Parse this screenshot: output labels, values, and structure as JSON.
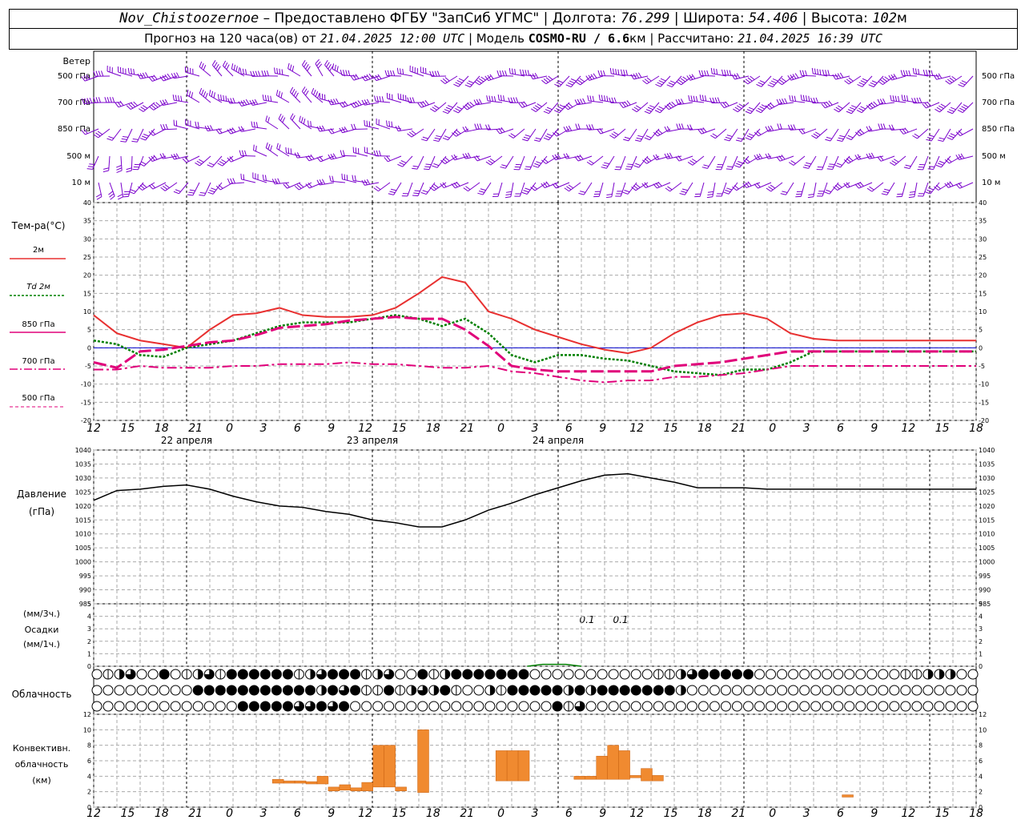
{
  "header": {
    "station": "Nov_Chistoozernoe",
    "provider": "– Предоставлено ФГБУ \"ЗапСиб УГМС\"",
    "lon_label": "Долгота:",
    "lon": "76.299",
    "lat_label": "Широта:",
    "lat": "54.406",
    "alt_label": "Высота:",
    "alt": "102",
    "alt_unit": "м",
    "forecast_label": "Прогноз на 120 часа(ов) от",
    "forecast_time": "21.04.2025 12:00 UTC",
    "model_label": "Модель",
    "model": "COSMO-RU / 6.6",
    "model_unit": "км",
    "calc_label": "Рассчитано:",
    "calc_time": "21.04.2025 16:39 UTC"
  },
  "labels": {
    "wind": "Ветер",
    "levels": [
      "500 гПа",
      "700 гПа",
      "850 гПа",
      "500 м",
      "10  м"
    ],
    "temp_title": "Тем-ра(°С)",
    "temp_legend": [
      {
        "label": "2м"
      },
      {
        "label": "Td  2м"
      },
      {
        "label": "850 гПа"
      },
      {
        "label": "700 гПа"
      },
      {
        "label": "500 гПа"
      }
    ],
    "pressure_title": "Давление",
    "pressure_unit": "(гПа)",
    "precip_unit_top": "(мм/3ч.)",
    "precip_title": "Осадки",
    "precip_unit_bottom": "(мм/1ч.)",
    "clouds_title": "Облачность",
    "conv_title_1": "Конвективн.",
    "conv_title_2": "облачность",
    "conv_unit": "(км)",
    "precip_values": [
      "0.1",
      "0.1"
    ]
  },
  "chart_data": {
    "hours": [
      "12",
      "15",
      "18",
      "21",
      "0",
      "3",
      "6",
      "9",
      "12",
      "15",
      "18",
      "21",
      "0",
      "3",
      "6",
      "9",
      "12",
      "15",
      "18",
      "21",
      "0",
      "3",
      "6",
      "9",
      "12",
      "15",
      "18"
    ],
    "dates": [
      "22 апреля",
      "23 апреля",
      "24 апреля"
    ],
    "colors": {
      "t2m": "#e83030",
      "td2m": "#008000",
      "t850": "#e0007a",
      "t700": "#e0007a",
      "t500": "#e0007a",
      "wind": "#7a00cc",
      "pressure": "#000000",
      "conv": "#f08a30",
      "zero": "#0000cc"
    },
    "temp_axis": {
      "min": -20,
      "max": 40,
      "step": 5
    },
    "pressure_axis": {
      "min": 985,
      "max": 1040,
      "step": 5
    },
    "precip_axis": {
      "min": 0,
      "max": 5,
      "step": 1
    },
    "conv_axis": {
      "min": 0,
      "max": 12,
      "step": 2
    },
    "temperature": [
      {
        "name": "t2m",
        "x": [
          0,
          3,
          6,
          9,
          12,
          15,
          18,
          21,
          24,
          27,
          30,
          33,
          36,
          39,
          42,
          45,
          48,
          51,
          54,
          57,
          60,
          63,
          66,
          69,
          72,
          75,
          78,
          81,
          84,
          87,
          90,
          93,
          96,
          99,
          102,
          105,
          108,
          111,
          114
        ],
        "y": [
          9,
          4,
          2,
          1,
          0,
          5,
          9,
          9.5,
          11,
          9,
          8.5,
          8.5,
          9,
          11,
          15,
          19.5,
          18,
          10,
          8,
          5,
          3,
          1,
          -0.5,
          -1.5,
          0,
          4,
          7,
          9,
          9.5,
          8,
          4,
          2.5,
          2,
          2,
          2,
          2,
          2,
          2,
          2
        ]
      },
      {
        "name": "td2m",
        "x": [
          0,
          3,
          6,
          9,
          12,
          15,
          18,
          21,
          24,
          27,
          30,
          33,
          36,
          39,
          42,
          45,
          48,
          51,
          54,
          57,
          60,
          63,
          66,
          69,
          72,
          75,
          78,
          81,
          84,
          87,
          90,
          93,
          96,
          99,
          102,
          105,
          108,
          111,
          114
        ],
        "y": [
          2,
          1,
          -2,
          -2.5,
          0,
          1,
          2,
          4,
          6,
          7,
          7,
          7,
          8,
          9,
          8,
          6,
          8,
          4,
          -2,
          -4,
          -2,
          -2,
          -3,
          -3.5,
          -5,
          -6.5,
          -7,
          -7.5,
          -6,
          -6,
          -4,
          -1,
          -1,
          -1,
          -1,
          -1,
          -1,
          -1,
          -1
        ]
      },
      {
        "name": "t850",
        "x": [
          0,
          3,
          6,
          9,
          12,
          15,
          18,
          21,
          24,
          27,
          30,
          33,
          36,
          39,
          42,
          45,
          48,
          51,
          54,
          57,
          60,
          63,
          66,
          69,
          72,
          75,
          78,
          81,
          84,
          87,
          90,
          93,
          96,
          99,
          102,
          105,
          108,
          111,
          114
        ],
        "y": [
          -4,
          -5.5,
          -1,
          -0.5,
          0.5,
          1.5,
          2,
          3.5,
          5.5,
          6,
          6.5,
          7.5,
          8,
          8.5,
          8,
          8,
          5,
          0.5,
          -5,
          -6,
          -6.5,
          -6.5,
          -6.5,
          -6.5,
          -6.5,
          -5,
          -4.5,
          -4,
          -3,
          -2,
          -1,
          -1,
          -1,
          -1,
          -1,
          -1,
          -1,
          -1,
          -1
        ]
      },
      {
        "name": "t700",
        "x": [
          0,
          3,
          6,
          9,
          12,
          15,
          18,
          21,
          24,
          27,
          30,
          33,
          36,
          39,
          42,
          45,
          48,
          51,
          54,
          57,
          60,
          63,
          66,
          69,
          72,
          75,
          78,
          81,
          84,
          87,
          90,
          93,
          96,
          99,
          102,
          105,
          108,
          111,
          114
        ],
        "y": [
          -6,
          -6,
          -5,
          -5.5,
          -5.5,
          -5.5,
          -5,
          -5,
          -4.5,
          -4.5,
          -4.5,
          -4,
          -4.5,
          -4.5,
          -5,
          -5.5,
          -5.5,
          -5,
          -6.5,
          -7,
          -8,
          -9,
          -9.5,
          -9,
          -9,
          -8,
          -8,
          -7.5,
          -7,
          -6,
          -5,
          -5,
          -5,
          -5,
          -5,
          -5,
          -5,
          -5,
          -5
        ]
      }
    ],
    "pressure": {
      "x": [
        0,
        3,
        6,
        9,
        12,
        15,
        18,
        21,
        24,
        27,
        30,
        33,
        36,
        39,
        42,
        45,
        48,
        51,
        54,
        57,
        60,
        63,
        66,
        69,
        72,
        75,
        78,
        81,
        84,
        87,
        90,
        93,
        96,
        99,
        102,
        105,
        108,
        111,
        114
      ],
      "y": [
        1022,
        1025.5,
        1026,
        1027,
        1027.5,
        1026,
        1023.5,
        1021.5,
        1020,
        1019.5,
        1018,
        1017,
        1015,
        1014,
        1012.5,
        1012.5,
        1015,
        1018.5,
        1021,
        1024,
        1026.5,
        1029,
        1031,
        1031.5,
        1030,
        1028.5,
        1026.5,
        1026.5,
        1026.5,
        1026,
        1026,
        1026,
        1026,
        1026,
        1026,
        1026,
        1026,
        1026,
        1026
      ]
    },
    "convective": [
      {
        "x": 16,
        "bottom": 3.1,
        "top": 3.6
      },
      {
        "x": 17,
        "bottom": 3.1,
        "top": 3.4
      },
      {
        "x": 18,
        "bottom": 3.1,
        "top": 3.4
      },
      {
        "x": 19,
        "bottom": 3.0,
        "top": 3.3
      },
      {
        "x": 20,
        "bottom": 3.0,
        "top": 4.0
      },
      {
        "x": 21,
        "bottom": 2.1,
        "top": 2.6
      },
      {
        "x": 22,
        "bottom": 2.2,
        "top": 2.9
      },
      {
        "x": 23,
        "bottom": 2.1,
        "top": 2.5
      },
      {
        "x": 24,
        "bottom": 2.1,
        "top": 3.2
      },
      {
        "x": 25,
        "bottom": 2.6,
        "top": 8.0
      },
      {
        "x": 26,
        "bottom": 2.6,
        "top": 8.0
      },
      {
        "x": 27,
        "bottom": 2.1,
        "top": 2.6
      },
      {
        "x": 29,
        "bottom": 1.9,
        "top": 10.0
      },
      {
        "x": 36,
        "bottom": 3.4,
        "top": 7.3
      },
      {
        "x": 37,
        "bottom": 3.4,
        "top": 7.3
      },
      {
        "x": 38,
        "bottom": 3.4,
        "top": 7.3
      },
      {
        "x": 43,
        "bottom": 3.6,
        "top": 4.0
      },
      {
        "x": 44,
        "bottom": 3.6,
        "top": 4.0
      },
      {
        "x": 45,
        "bottom": 3.6,
        "top": 6.6
      },
      {
        "x": 46,
        "bottom": 3.6,
        "top": 8.0
      },
      {
        "x": 47,
        "bottom": 3.6,
        "top": 7.3
      },
      {
        "x": 48,
        "bottom": 3.8,
        "top": 4.1
      },
      {
        "x": 49,
        "bottom": 3.4,
        "top": 5.0
      },
      {
        "x": 50,
        "bottom": 3.4,
        "top": 4.1
      },
      {
        "x": 67,
        "bottom": 1.3,
        "top": 1.6
      }
    ],
    "cloud_rows": [
      "0123004012314444441234441230041244444440000000000011234444400000000000001122200001201230000",
      "0000000004444444444424341141232410021444442424444444200000000000000000000000000002400000000",
      "0000000000000444443343400000000000000000041300000000000000000000000000000000000000000000000"
    ]
  }
}
